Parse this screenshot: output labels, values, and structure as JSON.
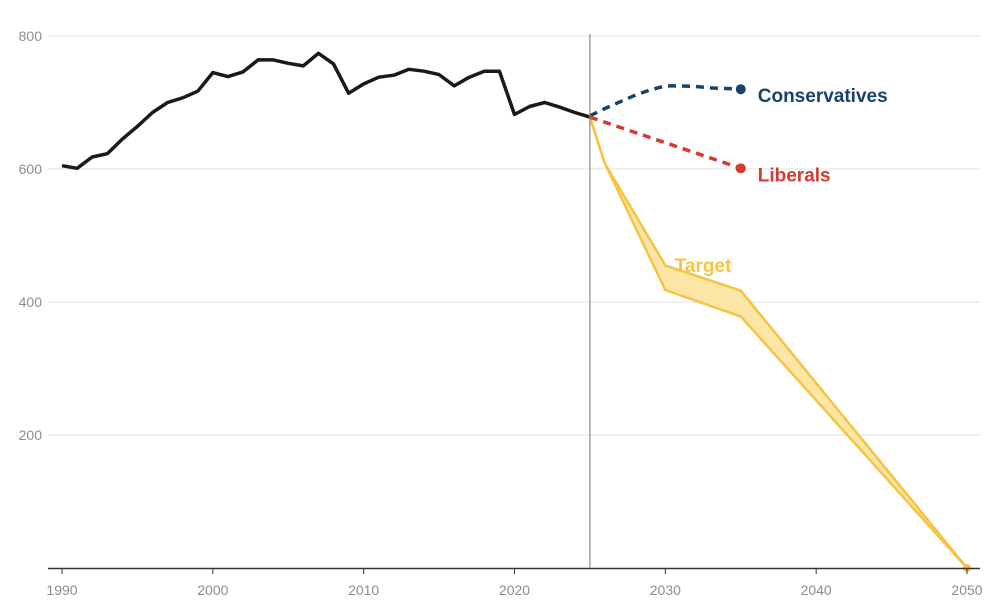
{
  "chart_data": {
    "type": "line",
    "title": "",
    "xlabel": "",
    "ylabel": "",
    "xlim": [
      1990,
      2050
    ],
    "ylim": [
      0,
      800
    ],
    "y_ticks": [
      200,
      400,
      600,
      800
    ],
    "y_tick_labels": [
      "200",
      "400",
      "600",
      "800"
    ],
    "x_ticks": [
      1990,
      2000,
      2010,
      2020,
      2030,
      2040,
      2050
    ],
    "x_tick_labels": [
      "1990",
      "2000",
      "2010",
      "2020",
      "2030",
      "2040",
      "2050"
    ],
    "grid": "horizontal",
    "legend": "none",
    "reference_line_x": 2025,
    "colors": {
      "historical": "#1a1a1a",
      "conservatives": "#17436b",
      "liberals": "#d63a2f",
      "target_line": "#f6c342",
      "target_fill": "#fbe6a6",
      "grid": "#e0e0e0",
      "reference": "#8c8c8c"
    },
    "series": [
      {
        "key": "historical",
        "style": "solid",
        "points": [
          [
            1990,
            605
          ],
          [
            1991,
            601
          ],
          [
            1992,
            618
          ],
          [
            1993,
            623
          ],
          [
            1994,
            645
          ],
          [
            1995,
            664
          ],
          [
            1996,
            685
          ],
          [
            1997,
            700
          ],
          [
            1998,
            707
          ],
          [
            1999,
            717
          ],
          [
            2000,
            745
          ],
          [
            2001,
            739
          ],
          [
            2002,
            746
          ],
          [
            2003,
            764
          ],
          [
            2004,
            764
          ],
          [
            2005,
            759
          ],
          [
            2006,
            755
          ],
          [
            2007,
            774
          ],
          [
            2008,
            758
          ],
          [
            2009,
            714
          ],
          [
            2010,
            728
          ],
          [
            2011,
            738
          ],
          [
            2012,
            741
          ],
          [
            2013,
            750
          ],
          [
            2014,
            747
          ],
          [
            2015,
            742
          ],
          [
            2016,
            725
          ],
          [
            2017,
            738
          ],
          [
            2018,
            747
          ],
          [
            2019,
            747
          ],
          [
            2020,
            682
          ],
          [
            2021,
            694
          ],
          [
            2022,
            700
          ],
          [
            2023,
            693
          ],
          [
            2024,
            685
          ],
          [
            2025,
            678
          ]
        ]
      },
      {
        "key": "conservatives",
        "name": "Conservatives",
        "style": "dashed",
        "points": [
          [
            2025,
            680
          ],
          [
            2026,
            691
          ],
          [
            2027,
            701
          ],
          [
            2028,
            711
          ],
          [
            2029,
            719
          ],
          [
            2030,
            725
          ],
          [
            2031,
            725
          ],
          [
            2032,
            724
          ],
          [
            2033,
            722
          ],
          [
            2034,
            721
          ],
          [
            2035,
            720
          ]
        ]
      },
      {
        "key": "liberals",
        "name": "Liberals",
        "style": "dashed",
        "points": [
          [
            2025,
            678
          ],
          [
            2035,
            601
          ]
        ]
      }
    ],
    "target_band": {
      "name": "Target",
      "upper": [
        [
          2025,
          678
        ],
        [
          2026,
          608
        ],
        [
          2030,
          455
        ],
        [
          2035,
          417
        ],
        [
          2050,
          0
        ]
      ],
      "lower": [
        [
          2025,
          678
        ],
        [
          2026,
          608
        ],
        [
          2030,
          418
        ],
        [
          2035,
          378
        ],
        [
          2050,
          0
        ]
      ]
    }
  }
}
